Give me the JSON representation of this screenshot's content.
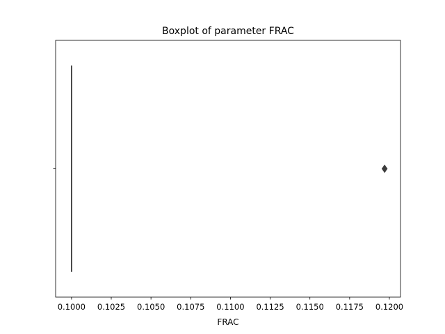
{
  "chart_data": {
    "type": "boxplot",
    "title": "Boxplot of parameter FRAC",
    "xlabel": "FRAC",
    "ylabel": "",
    "xlim": [
      0.099,
      0.1207
    ],
    "x_ticks": [
      0.1,
      0.1025,
      0.105,
      0.1075,
      0.11,
      0.1125,
      0.115,
      0.1175,
      0.12
    ],
    "x_tick_labels": [
      "0.1000",
      "0.1025",
      "0.1050",
      "0.1075",
      "0.1100",
      "0.1125",
      "0.1150",
      "0.1175",
      "0.1200"
    ],
    "grid": false,
    "orientation": "horizontal",
    "series": [
      {
        "whislo": 0.1,
        "q1": 0.1,
        "median": 0.1,
        "q3": 0.1,
        "whishi": 0.1,
        "outliers": [
          0.1197,
          0.1197,
          0.1197
        ]
      }
    ],
    "colors": {
      "box": "#3d3d3d",
      "outlier_fill": "#3d3d3d",
      "axes": "#000000"
    }
  }
}
